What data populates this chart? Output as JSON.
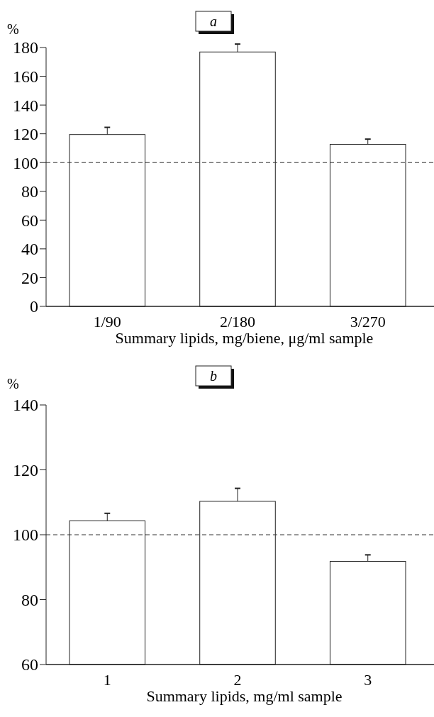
{
  "chart_data": [
    {
      "type": "bar",
      "title": "a",
      "ylabel": "%",
      "xlabel": "Summary lipids, mg/biene, μg/ml sample",
      "categories": [
        "1/90",
        "2/180",
        "3/270"
      ],
      "values": [
        119.5,
        176.9,
        112.7
      ],
      "errors": [
        5,
        5.5,
        3.6
      ],
      "color": "#ffffff",
      "ylim": [
        0,
        180
      ],
      "yticks": [
        0,
        20,
        40,
        60,
        80,
        100,
        120,
        140,
        160,
        180
      ],
      "ref_lines": [
        {
          "axis": "y",
          "value": 100,
          "color": "#333333",
          "line_style": "dashed"
        }
      ]
    },
    {
      "type": "bar",
      "title": "b",
      "ylabel": "%",
      "xlabel": "Summary lipids, mg/ml sample",
      "categories": [
        "1",
        "2",
        "3"
      ],
      "values": [
        104.3,
        110.3,
        91.8
      ],
      "errors": [
        2.3,
        4,
        2
      ],
      "color": "#ffffff",
      "ylim": [
        60,
        140
      ],
      "yticks": [
        60,
        80,
        100,
        120,
        140
      ],
      "ref_lines": [
        {
          "axis": "y",
          "value": 100,
          "color": "#333333",
          "line_style": "dashed"
        }
      ]
    }
  ]
}
